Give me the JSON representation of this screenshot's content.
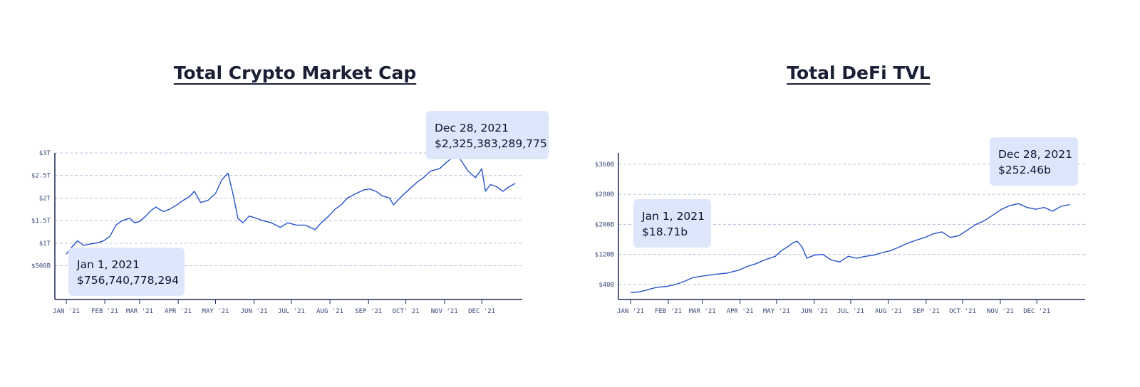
{
  "colors": {
    "line": "#2452c8",
    "callout_bg": "#dde6fb",
    "axis": "#1f2a56",
    "grid": "#b7bfdc"
  },
  "chart_data": [
    {
      "type": "line",
      "title": "Total Crypto Market Cap",
      "x_tick_labels": [
        "JAN '21",
        "FEB '21",
        "MAR '21",
        "APR '21",
        "MAY '21",
        "JUN '21",
        "JUL '21",
        "AUG '21",
        "SEP '21",
        "OCT' 21",
        "NOV '21",
        "DEC '21"
      ],
      "y_tick_labels": [
        "$500B",
        "$1T",
        "$1.5T",
        "$2T",
        "$2.5T",
        "$3T"
      ],
      "y_tick_values": [
        500,
        1000,
        1500,
        2000,
        2500,
        3000
      ],
      "y_unit": "billions USD",
      "ylim": [
        -250,
        3000
      ],
      "grid": true,
      "series": [
        {
          "x": [
            "2021-01-01",
            "2021-01-05",
            "2021-01-10",
            "2021-01-15",
            "2021-01-20",
            "2021-01-25",
            "2021-01-31",
            "2021-02-05",
            "2021-02-10",
            "2021-02-15",
            "2021-02-21",
            "2021-02-25",
            "2021-03-01",
            "2021-03-06",
            "2021-03-10",
            "2021-03-14",
            "2021-03-20",
            "2021-03-25",
            "2021-03-31",
            "2021-04-05",
            "2021-04-10",
            "2021-04-14",
            "2021-04-19",
            "2021-04-25",
            "2021-05-01",
            "2021-05-06",
            "2021-05-11",
            "2021-05-15",
            "2021-05-19",
            "2021-05-23",
            "2021-05-28",
            "2021-06-03",
            "2021-06-08",
            "2021-06-15",
            "2021-06-22",
            "2021-06-28",
            "2021-07-05",
            "2021-07-12",
            "2021-07-20",
            "2021-07-25",
            "2021-07-31",
            "2021-08-05",
            "2021-08-10",
            "2021-08-15",
            "2021-08-22",
            "2021-08-28",
            "2021-09-02",
            "2021-09-07",
            "2021-09-12",
            "2021-09-18",
            "2021-09-21",
            "2021-09-28",
            "2021-10-04",
            "2021-10-10",
            "2021-10-15",
            "2021-10-21",
            "2021-10-28",
            "2021-11-03",
            "2021-11-10",
            "2021-11-14",
            "2021-11-20",
            "2021-11-26",
            "2021-12-01",
            "2021-12-04",
            "2021-12-08",
            "2021-12-13",
            "2021-12-18",
            "2021-12-23",
            "2021-12-28"
          ],
          "y": [
            757,
            900,
            1050,
            950,
            980,
            1000,
            1050,
            1150,
            1400,
            1500,
            1550,
            1450,
            1480,
            1600,
            1720,
            1800,
            1700,
            1750,
            1850,
            1950,
            2030,
            2150,
            1900,
            1950,
            2100,
            2400,
            2550,
            2100,
            1550,
            1450,
            1600,
            1550,
            1500,
            1450,
            1350,
            1450,
            1400,
            1400,
            1300,
            1450,
            1600,
            1750,
            1850,
            2000,
            2100,
            2180,
            2200,
            2150,
            2050,
            2000,
            1850,
            2050,
            2200,
            2350,
            2450,
            2600,
            2650,
            2800,
            2950,
            2850,
            2600,
            2450,
            2650,
            2150,
            2300,
            2250,
            2150,
            2250,
            2325
          ]
        }
      ],
      "annotations": [
        {
          "date": "Jan 1, 2021",
          "value": "$756,740,778,294"
        },
        {
          "date": "Dec 28, 2021",
          "value": "$2,325,383,289,775"
        }
      ]
    },
    {
      "type": "line",
      "title": "Total DeFi TVL",
      "x_tick_labels": [
        "JAN '21",
        "FEB '21",
        "MAR '21",
        "APR '21",
        "MAY '21",
        "JUN '21",
        "JUL '21",
        "AUG '21",
        "SEP '21",
        "OCT '21",
        "NOV '21",
        "DEC '21"
      ],
      "y_tick_labels": [
        "$40B",
        "$120B",
        "$200B",
        "$280B",
        "$360B"
      ],
      "y_tick_values": [
        40,
        120,
        200,
        280,
        360
      ],
      "y_unit": "billions USD",
      "ylim": [
        0,
        390
      ],
      "grid": true,
      "series": [
        {
          "x": [
            "2021-01-01",
            "2021-01-08",
            "2021-01-15",
            "2021-01-22",
            "2021-01-31",
            "2021-02-07",
            "2021-02-14",
            "2021-02-21",
            "2021-02-28",
            "2021-03-07",
            "2021-03-14",
            "2021-03-21",
            "2021-03-31",
            "2021-04-07",
            "2021-04-14",
            "2021-04-21",
            "2021-04-30",
            "2021-05-05",
            "2021-05-10",
            "2021-05-14",
            "2021-05-18",
            "2021-05-22",
            "2021-05-26",
            "2021-06-01",
            "2021-06-08",
            "2021-06-15",
            "2021-06-22",
            "2021-06-29",
            "2021-07-06",
            "2021-07-13",
            "2021-07-20",
            "2021-07-27",
            "2021-08-03",
            "2021-08-10",
            "2021-08-17",
            "2021-08-24",
            "2021-08-31",
            "2021-09-07",
            "2021-09-14",
            "2021-09-21",
            "2021-09-28",
            "2021-10-05",
            "2021-10-12",
            "2021-10-19",
            "2021-10-26",
            "2021-11-02",
            "2021-11-09",
            "2021-11-16",
            "2021-11-23",
            "2021-11-30",
            "2021-12-07",
            "2021-12-14",
            "2021-12-21",
            "2021-12-28"
          ],
          "y": [
            18.71,
            20,
            26,
            32,
            35,
            40,
            48,
            58,
            62,
            65,
            68,
            70,
            78,
            88,
            95,
            105,
            115,
            130,
            140,
            150,
            155,
            140,
            110,
            118,
            120,
            105,
            100,
            115,
            110,
            115,
            118,
            125,
            130,
            140,
            150,
            158,
            165,
            175,
            180,
            165,
            170,
            185,
            200,
            210,
            225,
            240,
            250,
            255,
            245,
            240,
            245,
            235,
            248,
            252.46
          ]
        }
      ],
      "annotations": [
        {
          "date": "Jan 1, 2021",
          "value": "$18.71b"
        },
        {
          "date": "Dec 28, 2021",
          "value": "$252.46b"
        }
      ]
    }
  ]
}
